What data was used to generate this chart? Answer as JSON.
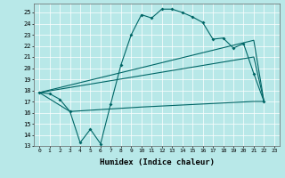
{
  "xlabel": "Humidex (Indice chaleur)",
  "xlim": [
    -0.5,
    23.5
  ],
  "ylim": [
    13,
    25.8
  ],
  "yticks": [
    13,
    14,
    15,
    16,
    17,
    18,
    19,
    20,
    21,
    22,
    23,
    24,
    25
  ],
  "xticks": [
    0,
    1,
    2,
    3,
    4,
    5,
    6,
    7,
    8,
    9,
    10,
    11,
    12,
    13,
    14,
    15,
    16,
    17,
    18,
    19,
    20,
    21,
    22,
    23
  ],
  "bg_color": "#b8e8e8",
  "line_color": "#006666",
  "line1_x": [
    0,
    1,
    2,
    3,
    4,
    5,
    6,
    7,
    8,
    9,
    10,
    11,
    12,
    13,
    14,
    15,
    16,
    17,
    18,
    19,
    20,
    21,
    22
  ],
  "line1_y": [
    17.8,
    17.7,
    17.2,
    16.1,
    13.3,
    14.5,
    13.2,
    16.8,
    20.3,
    23.0,
    24.8,
    24.5,
    25.3,
    25.3,
    25.0,
    24.6,
    24.1,
    22.6,
    22.7,
    21.8,
    22.2,
    19.5,
    17.0
  ],
  "line2_x": [
    0,
    21,
    22
  ],
  "line2_y": [
    17.8,
    22.5,
    17.0
  ],
  "line3_x": [
    0,
    21,
    22
  ],
  "line3_y": [
    17.8,
    21.0,
    17.0
  ],
  "line4_x": [
    0,
    3,
    10,
    21,
    22
  ],
  "line4_y": [
    17.8,
    16.1,
    16.5,
    17.0,
    17.0
  ]
}
